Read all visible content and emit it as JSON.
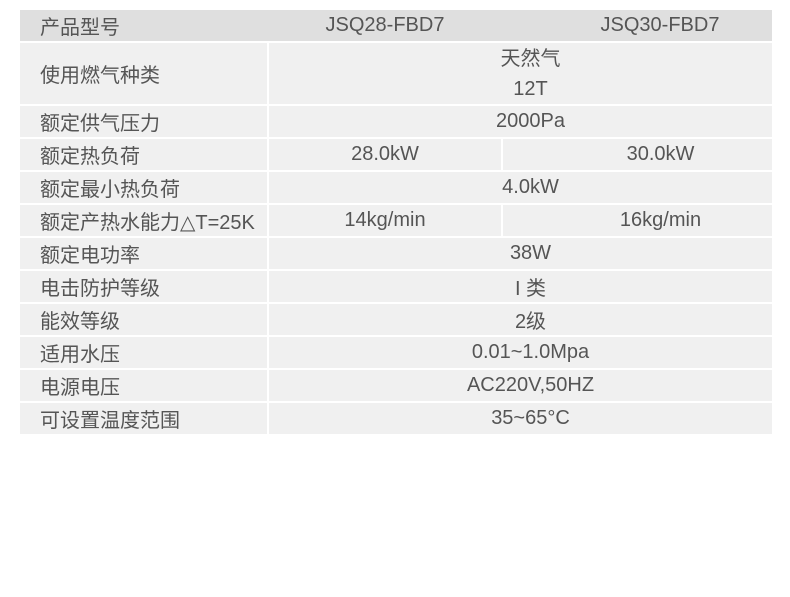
{
  "colors": {
    "page_background": "#ffffff",
    "header_row_bg": "#dfdfdf",
    "data_row_bg": "#f0f0f0",
    "separator": "#ffffff",
    "text": "#555555"
  },
  "spec_table": {
    "header": {
      "product_model_label": "产品型号",
      "model_1": "JSQ28-FBD7",
      "model_2": "JSQ30-FBD7"
    },
    "rows": [
      {
        "label": "使用燃气种类",
        "value_line_1": "天然气",
        "value_line_2": "12T"
      },
      {
        "label": "额定供气压力",
        "value": "2000Pa"
      },
      {
        "label": "额定热负荷",
        "value_model_1": "28.0kW",
        "value_model_2": "30.0kW"
      },
      {
        "label": "额定最小热负荷",
        "value": "4.0kW"
      },
      {
        "label": "额定产热水能力△T=25K",
        "value_model_1": "14kg/min",
        "value_model_2": "16kg/min"
      },
      {
        "label": "额定电功率",
        "value": "38W"
      },
      {
        "label": "电击防护等级",
        "value": "I 类"
      },
      {
        "label": "能效等级",
        "value": "2级"
      },
      {
        "label": "适用水压",
        "value": "0.01~1.0Mpa"
      },
      {
        "label": "电源电压",
        "value": "AC220V,50HZ"
      },
      {
        "label": "可设置温度范围",
        "value": "35~65°C"
      }
    ]
  }
}
